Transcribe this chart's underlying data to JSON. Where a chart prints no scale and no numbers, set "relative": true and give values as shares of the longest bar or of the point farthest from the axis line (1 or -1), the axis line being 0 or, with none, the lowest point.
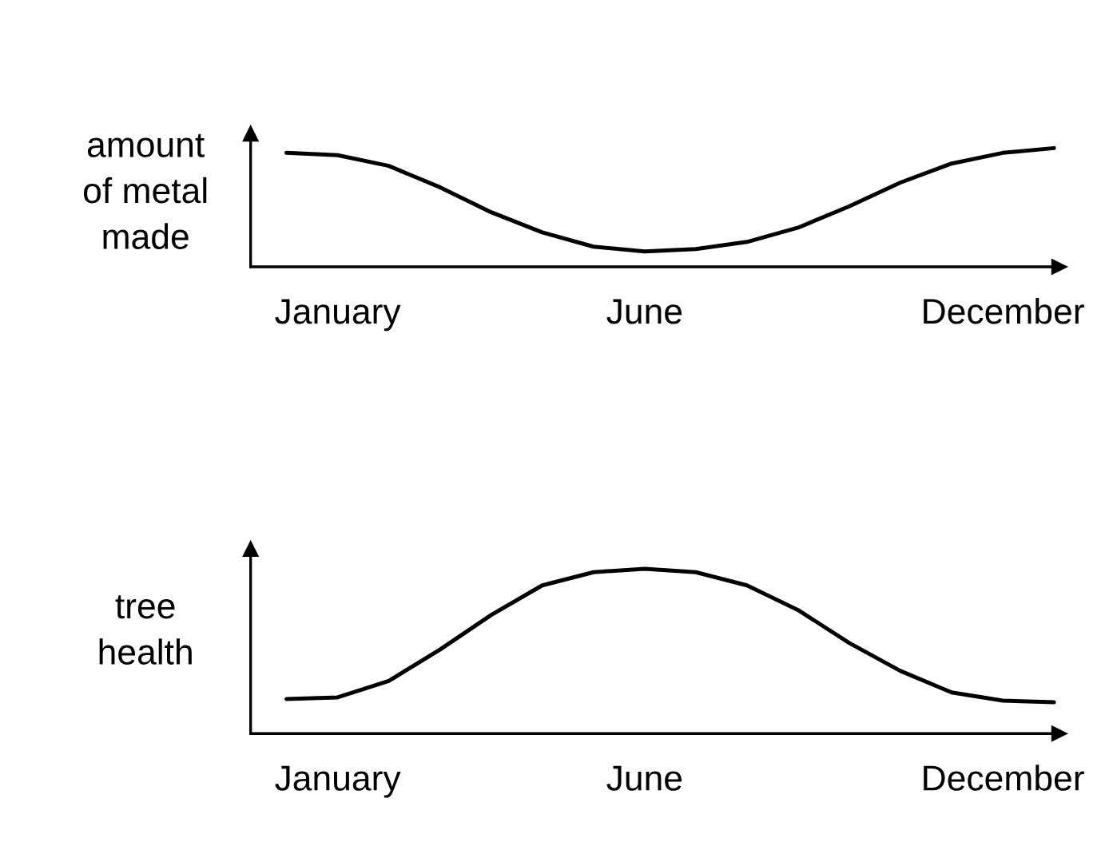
{
  "chart_data": [
    {
      "type": "line",
      "ylabel": "amount\nof metal\nmade",
      "relative": true,
      "categories": [
        null,
        "January",
        null,
        null,
        null,
        null,
        null,
        "June",
        null,
        null,
        null,
        null,
        null,
        null,
        "December",
        null
      ],
      "series": [
        {
          "color": "#000000",
          "values": [
            0.96,
            0.94,
            0.85,
            0.67,
            0.46,
            0.29,
            0.17,
            0.13,
            0.15,
            0.21,
            0.33,
            0.51,
            0.71,
            0.87,
            0.96,
            1
          ]
        }
      ],
      "grid": false,
      "legend": false,
      "marker": "none",
      "line_style": "solid"
    },
    {
      "type": "line",
      "ylabel": "tree\nhealth",
      "relative": true,
      "categories": [
        null,
        "January",
        null,
        null,
        null,
        null,
        null,
        "June",
        null,
        null,
        null,
        null,
        null,
        null,
        "December",
        null
      ],
      "series": [
        {
          "color": "#000000",
          "values": [
            0.21,
            0.22,
            0.32,
            0.51,
            0.72,
            0.9,
            0.98,
            1,
            0.98,
            0.9,
            0.75,
            0.55,
            0.38,
            0.25,
            0.2,
            0.19
          ]
        }
      ],
      "grid": false,
      "legend": false,
      "marker": "none",
      "line_style": "solid"
    }
  ]
}
